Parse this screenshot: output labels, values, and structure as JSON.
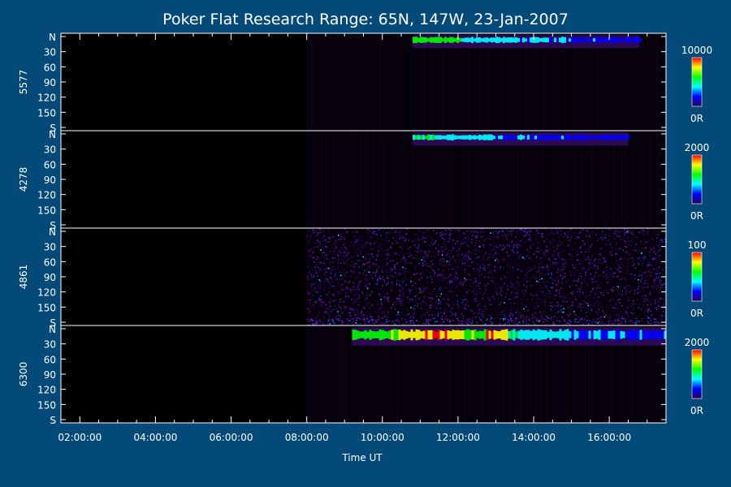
{
  "title": "Poker Flat Research Range: 65N, 147W, 23-Jan-2007",
  "chart_data": {
    "type": "heatmap",
    "title": "Poker Flat Research Range: 65N, 147W, 23-Jan-2007",
    "xlabel": "Time UT",
    "x_ticks": [
      "02:00:00",
      "04:00:00",
      "06:00:00",
      "08:00:00",
      "10:00:00",
      "12:00:00",
      "14:00:00",
      "16:00:00"
    ],
    "xlim_hours": [
      1.5,
      17.5
    ],
    "data_start_hour": 8.0,
    "y_ticks": [
      "N",
      "30",
      "60",
      "90",
      "120",
      "150",
      "S"
    ],
    "ylim": [
      0,
      180
    ],
    "colorscale": [
      "#2a0050",
      "#0000ff",
      "#00ffff",
      "#00ff00",
      "#ffff00",
      "#ff0000"
    ],
    "panels": [
      {
        "ylabel": "5577",
        "cbar_max_label": "10000",
        "cbar_min_label": "0R",
        "arc": {
          "start_hour": 10.8,
          "end_hour": 16.8,
          "angle_range": [
            2,
            14
          ],
          "peak_intensity": 0.45,
          "peak_hour": 11.0
        }
      },
      {
        "ylabel": "4278",
        "cbar_max_label": "2000",
        "cbar_min_label": "0R",
        "arc": {
          "start_hour": 10.8,
          "end_hour": 16.5,
          "angle_range": [
            2,
            14
          ],
          "peak_intensity": 0.3,
          "peak_hour": 11.0
        }
      },
      {
        "ylabel": "4861",
        "cbar_max_label": "100",
        "cbar_min_label": "0R",
        "noise": true
      },
      {
        "ylabel": "6300",
        "cbar_max_label": "2000",
        "cbar_min_label": "0R",
        "arc": {
          "start_hour": 9.2,
          "end_hour": 17.5,
          "angle_range": [
            2,
            24
          ],
          "peak_intensity": 0.75,
          "peak_hour": 11.3
        }
      }
    ]
  }
}
